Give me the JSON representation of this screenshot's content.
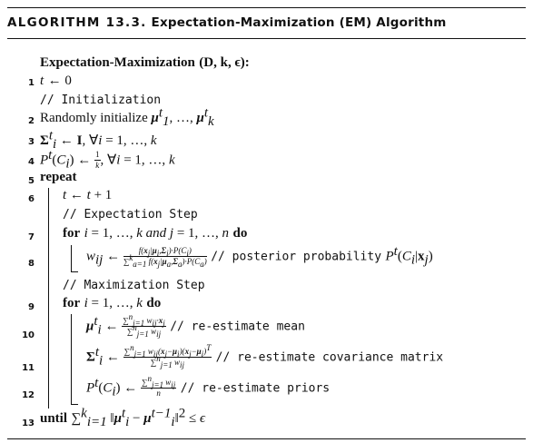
{
  "header": {
    "tag": "ALGORITHM 13.3.",
    "title": "Expectation-Maximization (EM) Algorithm"
  },
  "signature": {
    "name_first": "Expectation",
    "name_sep": "-",
    "name_second": "Maximization",
    "args": "(D, k, ϵ):"
  },
  "lines": [
    {
      "num": "1",
      "text": "t ← 0"
    },
    {
      "comment": "// Initialization"
    },
    {
      "num": "2",
      "text": "Randomly initialize μ₁ᵗ, …, μₖᵗ"
    },
    {
      "num": "3",
      "text": "Σᵢᵗ ← I, ∀i = 1, …, k"
    },
    {
      "num": "4",
      "text": "Pᵗ(Cᵢ) ← 1/k, ∀i = 1, …, k"
    },
    {
      "num": "5",
      "keyword": "repeat"
    },
    {
      "num": "6",
      "text": "t ← t + 1"
    },
    {
      "comment": "// Expectation Step"
    },
    {
      "num": "7",
      "text": "for i = 1, …, k and j = 1, …, n do"
    },
    {
      "num": "8",
      "text": "wᵢⱼ ← f(xⱼ|μᵢ,Σᵢ)·P(Cᵢ) / Σₐ₌₁ᵏ f(xⱼ|μₐ,Σₐ)·P(Cₐ)",
      "comment": "// posterior probability",
      "tail": "Pᵗ(Cᵢ|xⱼ)"
    },
    {
      "comment": "// Maximization Step"
    },
    {
      "num": "9",
      "text": "for i = 1, …, k do"
    },
    {
      "num": "10",
      "text": "μᵢᵗ ← Σⱼ₌₁ⁿ wᵢⱼ·xⱼ / Σⱼ₌₁ⁿ wᵢⱼ",
      "comment": "// re-estimate mean"
    },
    {
      "num": "11",
      "text": "Σᵢᵗ ← Σⱼ₌₁ⁿ wᵢⱼ(xⱼ−μᵢ)(xⱼ−μᵢ)ᵀ / Σⱼ₌₁ⁿ wᵢⱼ",
      "comment": "// re-estimate covariance matrix"
    },
    {
      "num": "12",
      "text": "Pᵗ(Cᵢ) ← Σⱼ₌₁ⁿ wᵢⱼ / n",
      "comment": "// re-estimate priors"
    },
    {
      "num": "13",
      "keyword": "until",
      "text": "Σᵢ₌₁ᵏ ‖μᵢᵗ − μᵢᵗ⁻¹‖² ≤ ϵ"
    }
  ]
}
